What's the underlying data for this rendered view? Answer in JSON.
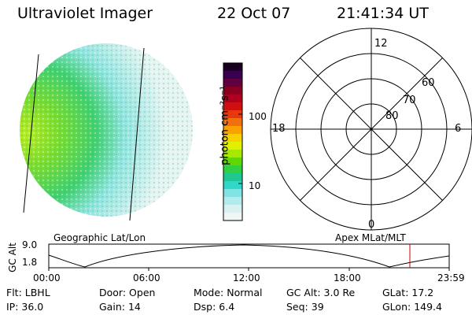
{
  "header": {
    "instrument": "Ultraviolet Imager",
    "date": "22 Oct 07",
    "time": "21:41:34 UT"
  },
  "colorbar": {
    "label": "photon cm⁻²s⁻¹",
    "ticks": [
      "100",
      "10"
    ],
    "colors": [
      "#1a0020",
      "#3a0050",
      "#600040",
      "#8a0020",
      "#b00020",
      "#d01010",
      "#e83810",
      "#f07010",
      "#f8a000",
      "#f8d000",
      "#e0f000",
      "#a8e800",
      "#60d800",
      "#30d040",
      "#20c890",
      "#30d8c8",
      "#80e4e4",
      "#b0ecec",
      "#d8f2f2",
      "#eef6f6"
    ]
  },
  "polar": {
    "mlt_labels": {
      "top": "12",
      "left": "18",
      "right": "6",
      "bottom": "0"
    },
    "lat_labels": [
      "60",
      "70",
      "80"
    ]
  },
  "timeline": {
    "left_label": "Geographic Lat/Lon",
    "right_label": "Apex MLat/MLT",
    "y_axis_label": "GC Alt",
    "y_ticks": [
      "9.0",
      "1.8"
    ],
    "x_ticks": [
      "00:00",
      "06:00",
      "12:00",
      "18:00",
      "23:59"
    ],
    "marker_color": "#cc0000"
  },
  "info": {
    "row1": [
      {
        "label": "Flt:",
        "value": "LBHL"
      },
      {
        "label": "Door:",
        "value": "Open"
      },
      {
        "label": "Mode:",
        "value": "Normal"
      },
      {
        "label": "GC Alt:",
        "value": "3.0 Re"
      },
      {
        "label": "GLat:",
        "value": "17.2"
      }
    ],
    "row2": [
      {
        "label": "IP:",
        "value": "36.0"
      },
      {
        "label": "Gain:",
        "value": "14"
      },
      {
        "label": "Dsp:",
        "value": "6.4"
      },
      {
        "label": "Seq:",
        "value": "39"
      },
      {
        "label": "GLon:",
        "value": "149.4"
      }
    ]
  }
}
